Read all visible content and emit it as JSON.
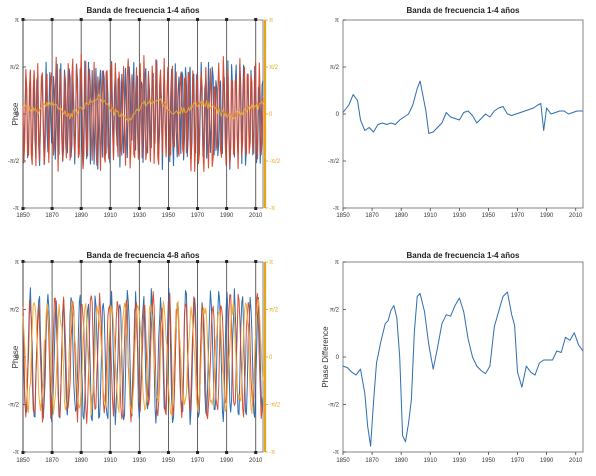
{
  "chart_data": [
    {
      "type": "line",
      "title": "Banda de frecuencia 1-4 años",
      "xlabel": "",
      "ylabel": "Phase",
      "xlim": [
        1850,
        2015
      ],
      "ylim": [
        -3.1416,
        3.1416
      ],
      "x_ticks": [
        "1850",
        "1870",
        "1890",
        "1910",
        "1930",
        "1950",
        "1970",
        "1990",
        "2010"
      ],
      "y_ticks": [
        "π",
        "π/2",
        "0",
        "-π/2",
        "-π"
      ],
      "y2_ticks": [
        "π",
        "π/2",
        "0",
        "-π/2",
        "-π"
      ],
      "y2_color": "#e8a317",
      "grid": "vertical",
      "series": [
        {
          "color": "#2166ac",
          "kind": "fast-oscillation",
          "period_years": 2.6,
          "amplitude": 1.6
        },
        {
          "color": "#d6452a",
          "kind": "fast-oscillation",
          "period_years": 2.9,
          "amplitude": 1.7
        },
        {
          "color": "#f0a830",
          "kind": "slow-variation",
          "values": [
            0.3,
            0.1,
            0.4,
            -0.1,
            0.2,
            0.6,
            0.1,
            -0.2,
            0.3,
            0.5,
            0.0,
            0.2,
            0.4,
            0.1,
            -0.1,
            0.2,
            0.3
          ]
        }
      ]
    },
    {
      "type": "line",
      "title": "Banda de frecuencia 1-4 años",
      "xlabel": "",
      "ylabel": "",
      "xlim": [
        1850,
        2015
      ],
      "ylim": [
        -3.1416,
        3.1416
      ],
      "x_ticks": [
        "1850",
        "1870",
        "1890",
        "1910",
        "1930",
        "1950",
        "1970",
        "1990",
        "2010"
      ],
      "y_ticks": [
        "π",
        "π/2",
        "0",
        "-π/2",
        "-π"
      ],
      "grid": "none",
      "series": [
        {
          "color": "#2166ac",
          "x": [
            1850,
            1854,
            1857,
            1860,
            1862,
            1865,
            1868,
            1871,
            1874,
            1877,
            1880,
            1883,
            1886,
            1889,
            1892,
            1895,
            1898,
            1901,
            1903,
            1905,
            1907,
            1909,
            1912,
            1915,
            1918,
            1921,
            1924,
            1927,
            1930,
            1933,
            1936,
            1939,
            1942,
            1945,
            1948,
            1951,
            1954,
            1957,
            1960,
            1963,
            1966,
            1969,
            1972,
            1975,
            1978,
            1981,
            1984,
            1986,
            1988,
            1990,
            1993,
            1996,
            1999,
            2002,
            2005,
            2008,
            2011,
            2015
          ],
          "y": [
            0.05,
            0.3,
            0.65,
            0.45,
            -0.2,
            -0.55,
            -0.45,
            -0.6,
            -0.35,
            -0.3,
            -0.35,
            -0.3,
            -0.35,
            -0.2,
            -0.1,
            0.0,
            0.3,
            0.85,
            1.1,
            0.6,
            0.1,
            -0.65,
            -0.6,
            -0.45,
            -0.3,
            0.05,
            -0.1,
            -0.15,
            -0.2,
            0.05,
            0.1,
            -0.05,
            -0.3,
            -0.15,
            0.0,
            -0.1,
            0.1,
            0.2,
            0.25,
            0.0,
            -0.05,
            0.0,
            0.05,
            0.1,
            0.15,
            0.2,
            0.3,
            0.35,
            -0.55,
            0.2,
            0.0,
            0.05,
            0.1,
            0.1,
            0.0,
            0.05,
            0.1,
            0.1
          ]
        }
      ]
    },
    {
      "type": "line",
      "title": "Banda de frecuencia 4-8 años",
      "xlabel": "",
      "ylabel": "Phase",
      "xlim": [
        1850,
        2015
      ],
      "ylim": [
        -3.1416,
        3.1416
      ],
      "x_ticks": [
        "1850",
        "1870",
        "1890",
        "1910",
        "1930",
        "1950",
        "1970",
        "1990",
        "2010"
      ],
      "y_ticks": [
        "π",
        "π/2",
        "0",
        "-π/2",
        "-π"
      ],
      "y2_ticks": [
        "π",
        "π/2",
        "0",
        "-π/2",
        "-π"
      ],
      "y2_color": "#e8a317",
      "grid": "vertical",
      "series": [
        {
          "color": "#2166ac",
          "kind": "medium-oscillation",
          "period_years": 5.5,
          "amplitude": 1.9
        },
        {
          "color": "#d6452a",
          "kind": "medium-oscillation",
          "period_years": 6.0,
          "amplitude": 1.8
        },
        {
          "color": "#f0a830",
          "kind": "medium-oscillation",
          "period_years": 9.0,
          "amplitude": 1.6
        }
      ]
    },
    {
      "type": "line",
      "title": "Banda de frecuencia 1-4 años",
      "xlabel": "",
      "ylabel": "Phase Difference",
      "xlim": [
        1850,
        2015
      ],
      "ylim": [
        -3.1416,
        3.1416
      ],
      "x_ticks": [
        "1850",
        "1870",
        "1890",
        "1910",
        "1930",
        "1950",
        "1970",
        "1990",
        "2010"
      ],
      "y_ticks": [
        "π",
        "π/2",
        "0",
        "-π/2",
        "-π"
      ],
      "grid": "none",
      "series": [
        {
          "color": "#2166ac",
          "x": [
            1850,
            1853,
            1856,
            1859,
            1862,
            1865,
            1867,
            1869,
            1871,
            1873,
            1876,
            1879,
            1881,
            1883,
            1885,
            1887,
            1889,
            1891,
            1893,
            1895,
            1897,
            1899,
            1901,
            1903,
            1906,
            1909,
            1912,
            1915,
            1918,
            1921,
            1924,
            1927,
            1930,
            1933,
            1936,
            1939,
            1942,
            1945,
            1948,
            1951,
            1954,
            1957,
            1960,
            1963,
            1966,
            1968,
            1970,
            1973,
            1976,
            1979,
            1982,
            1985,
            1988,
            1991,
            1994,
            1997,
            2000,
            2003,
            2006,
            2009,
            2012,
            2015
          ],
          "y": [
            -0.3,
            -0.35,
            -0.5,
            -0.6,
            -0.4,
            -1.2,
            -2.3,
            -2.95,
            -1.5,
            -0.2,
            0.5,
            1.1,
            1.2,
            1.55,
            1.7,
            1.3,
            0.0,
            -2.6,
            -2.8,
            -2.2,
            -1.4,
            0.8,
            2.0,
            2.1,
            1.5,
            0.4,
            -0.4,
            0.3,
            1.1,
            1.4,
            1.35,
            1.7,
            1.95,
            1.5,
            0.6,
            0.0,
            -0.3,
            -0.45,
            -0.55,
            -0.3,
            1.0,
            1.5,
            2.0,
            2.15,
            1.4,
            1.05,
            -0.5,
            -1.0,
            -0.3,
            -0.5,
            -0.6,
            -0.2,
            -0.1,
            -0.1,
            -0.1,
            0.2,
            0.15,
            0.65,
            0.55,
            0.8,
            0.4,
            0.2
          ]
        }
      ]
    }
  ]
}
